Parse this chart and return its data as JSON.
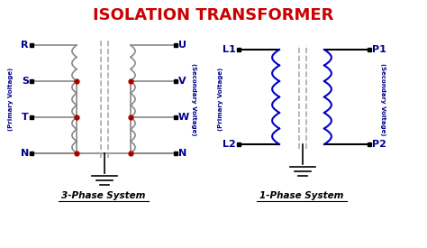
{
  "title": "ISOLATION TRANSFORMER",
  "title_color": "#CC0000",
  "title_fontsize": 13,
  "bg_color": "#FFFFFF",
  "wire_color": "#888888",
  "coil_color_3phase": "#888888",
  "coil_color_1phase": "#0000CC",
  "dot_color": "#AA0000",
  "label_color": "#00008B",
  "label_fontsize": 8,
  "subtitle_3phase": "3-Phase System",
  "subtitle_1phase": "1-Phase System",
  "primary_label": "(Primary Voltage)",
  "secondary_label": "(Secondary Voltage)"
}
